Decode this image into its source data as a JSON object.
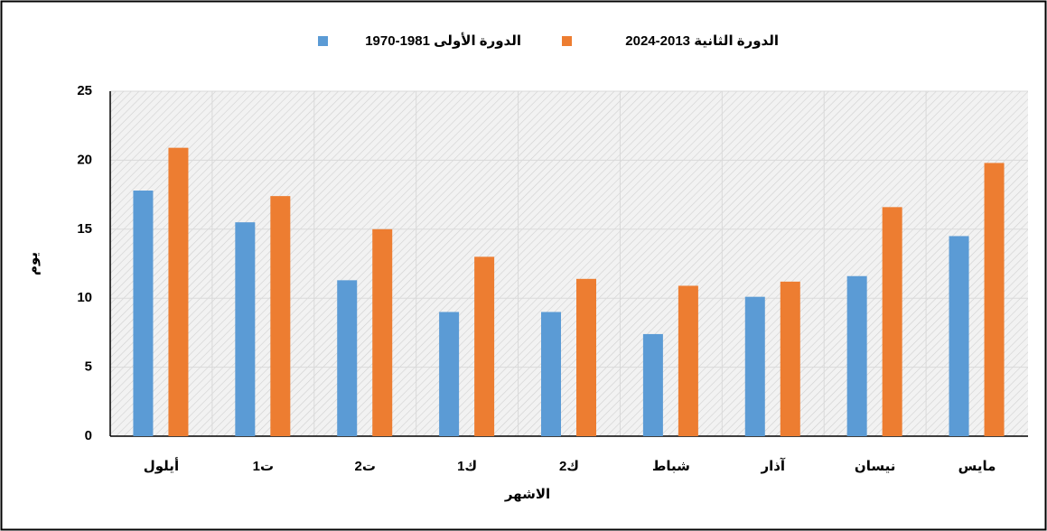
{
  "chart_data": {
    "type": "bar",
    "categories": [
      "أيلول",
      "ت1",
      "ت2",
      "ك1",
      "ك2",
      "شباط",
      "آذار",
      "نيسان",
      "مايس"
    ],
    "series": [
      {
        "name": "الدورة الأولى  1981-1970",
        "color": "#5b9bd5",
        "values": [
          17.8,
          15.5,
          11.3,
          9,
          9,
          7.4,
          10.1,
          11.6,
          14.5
        ]
      },
      {
        "name": "الدورة الثانية 2013-2024",
        "color": "#ed7d31",
        "values": [
          20.9,
          17.4,
          15,
          13,
          11.4,
          10.9,
          11.2,
          16.6,
          19.8
        ]
      }
    ],
    "x_label": "الاشهر",
    "y_label": "يوم",
    "ylim": [
      0,
      25
    ],
    "yticks": [
      0,
      5,
      10,
      15,
      20,
      25
    ],
    "grid": true,
    "legend": "top"
  }
}
